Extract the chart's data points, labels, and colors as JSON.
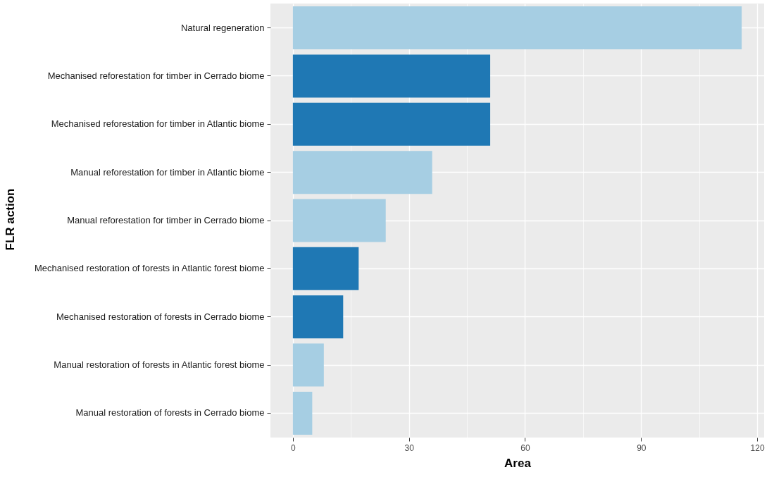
{
  "chart_data": {
    "type": "bar",
    "orientation": "horizontal",
    "xlabel": "Area",
    "ylabel": "FLR action",
    "categories": [
      "Natural regeneration",
      "Mechanised reforestation for timber in Cerrado biome",
      "Mechanised reforestation for timber in Atlantic biome",
      "Manual reforestation for timber in Atlantic biome",
      "Manual reforestation for timber in Cerrado biome",
      "Mechanised restoration of forests in Atlantic forest biome",
      "Mechanised restoration of forests in Cerrado biome",
      "Manual restoration of forests in Atlantic forest biome",
      "Manual restoration of forests in Cerrado biome"
    ],
    "values": [
      116,
      51,
      51,
      36,
      24,
      17,
      13,
      8,
      5
    ],
    "colors": [
      "#a6cee3",
      "#1f78b4",
      "#1f78b4",
      "#a6cee3",
      "#a6cee3",
      "#1f78b4",
      "#1f78b4",
      "#a6cee3",
      "#a6cee3"
    ],
    "xlim": [
      -5.8,
      121.8
    ],
    "xticks": [
      0,
      {
        "value": 15,
        "label": null
      },
      30,
      {
        "value": 45,
        "label": null
      },
      60,
      {
        "value": 75,
        "label": null
      },
      90,
      {
        "value": 105,
        "label": null
      },
      120
    ],
    "grid": true,
    "legend": false
  }
}
